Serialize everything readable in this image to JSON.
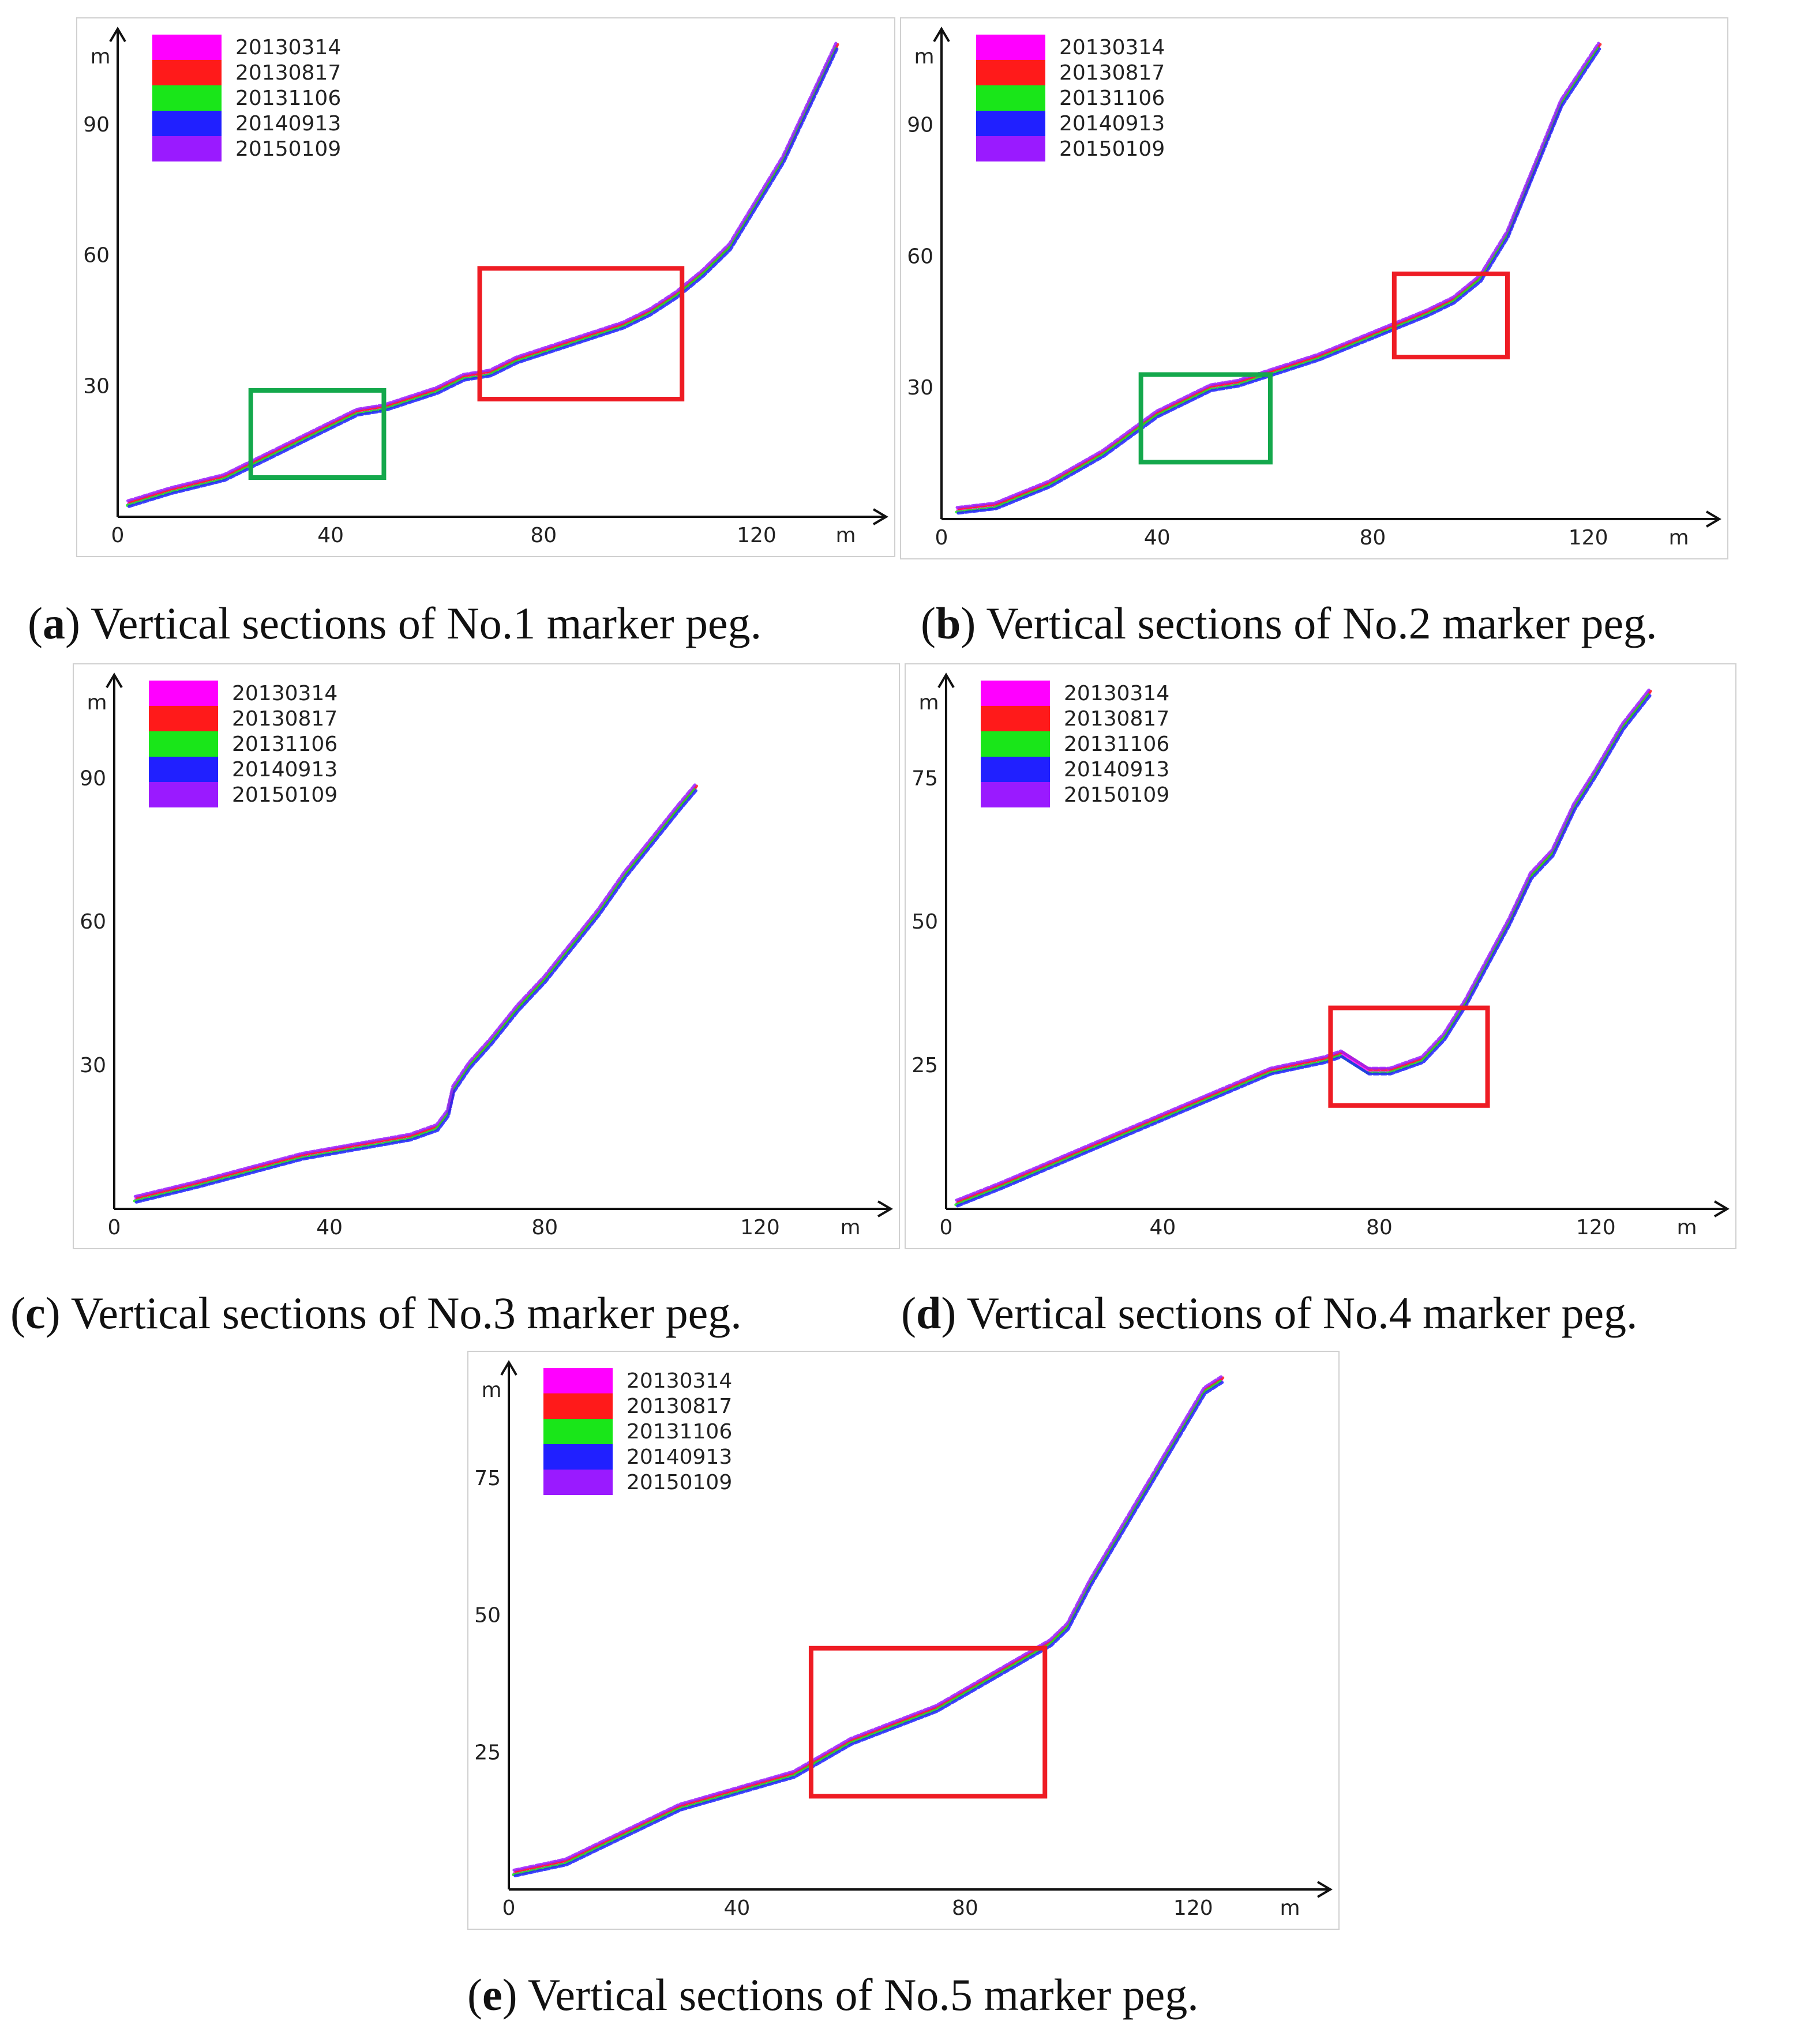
{
  "legend": {
    "items": [
      {
        "label": "20130314",
        "color": "#ff00ff"
      },
      {
        "label": "20130817",
        "color": "#ff1a1a"
      },
      {
        "label": "20131106",
        "color": "#19e619"
      },
      {
        "label": "20140913",
        "color": "#2020ff"
      },
      {
        "label": "20150109",
        "color": "#9a1aff"
      }
    ]
  },
  "box_colors": {
    "red": "#ee1c24",
    "green": "#14a84c"
  },
  "chart_data": [
    {
      "type": "line",
      "letter": "a",
      "caption": "Vertical sections of No.1 marker peg.",
      "xlabel": "m",
      "ylabel": "m",
      "xlim": [
        0,
        140
      ],
      "ylim": [
        0,
        108
      ],
      "xticks": [
        0,
        40,
        80,
        120
      ],
      "yticks": [
        30,
        60,
        90
      ],
      "profile": [
        [
          2,
          3
        ],
        [
          10,
          6
        ],
        [
          20,
          9
        ],
        [
          30,
          15
        ],
        [
          40,
          21
        ],
        [
          45,
          24
        ],
        [
          50,
          25
        ],
        [
          55,
          27
        ],
        [
          60,
          29
        ],
        [
          65,
          32
        ],
        [
          70,
          33
        ],
        [
          75,
          36
        ],
        [
          80,
          38
        ],
        [
          85,
          40
        ],
        [
          90,
          42
        ],
        [
          95,
          44
        ],
        [
          100,
          47
        ],
        [
          105,
          51
        ],
        [
          110,
          56
        ],
        [
          115,
          62
        ],
        [
          120,
          72
        ],
        [
          125,
          82
        ],
        [
          130,
          95
        ],
        [
          135,
          108
        ]
      ],
      "boxes": [
        {
          "color": "green",
          "x0": 25,
          "x1": 50,
          "y0": 9,
          "y1": 29
        },
        {
          "color": "red",
          "x0": 68,
          "x1": 106,
          "y0": 27,
          "y1": 57
        }
      ]
    },
    {
      "type": "line",
      "letter": "b",
      "caption": "Vertical sections of No.2 marker peg.",
      "xlabel": "m",
      "ylabel": "m",
      "xlim": [
        0,
        140
      ],
      "ylim": [
        0,
        108
      ],
      "xticks": [
        0,
        40,
        80,
        120
      ],
      "yticks": [
        30,
        60,
        90
      ],
      "profile": [
        [
          3,
          2
        ],
        [
          10,
          3
        ],
        [
          20,
          8
        ],
        [
          30,
          15
        ],
        [
          40,
          24
        ],
        [
          45,
          27
        ],
        [
          50,
          30
        ],
        [
          55,
          31
        ],
        [
          60,
          33
        ],
        [
          65,
          35
        ],
        [
          70,
          37
        ],
        [
          80,
          42
        ],
        [
          90,
          47
        ],
        [
          95,
          50
        ],
        [
          100,
          55
        ],
        [
          105,
          65
        ],
        [
          110,
          80
        ],
        [
          115,
          95
        ],
        [
          122,
          108
        ]
      ],
      "boxes": [
        {
          "color": "green",
          "x0": 37,
          "x1": 61,
          "y0": 13,
          "y1": 33
        },
        {
          "color": "red",
          "x0": 84,
          "x1": 105,
          "y0": 37,
          "y1": 56
        }
      ]
    },
    {
      "type": "line",
      "letter": "c",
      "caption": "Vertical sections of No.3 marker peg.",
      "xlabel": "m",
      "ylabel": "m",
      "xlim": [
        0,
        140
      ],
      "ylim": [
        0,
        108
      ],
      "xticks": [
        0,
        40,
        80,
        120
      ],
      "yticks": [
        30,
        60,
        90
      ],
      "profile": [
        [
          4,
          2
        ],
        [
          15,
          5
        ],
        [
          25,
          8
        ],
        [
          35,
          11
        ],
        [
          45,
          13
        ],
        [
          55,
          15
        ],
        [
          60,
          17
        ],
        [
          62,
          20
        ],
        [
          63,
          25
        ],
        [
          66,
          30
        ],
        [
          70,
          35
        ],
        [
          75,
          42
        ],
        [
          80,
          48
        ],
        [
          85,
          55
        ],
        [
          90,
          62
        ],
        [
          95,
          70
        ],
        [
          100,
          77
        ],
        [
          105,
          84
        ],
        [
          108,
          88
        ]
      ],
      "boxes": []
    },
    {
      "type": "line",
      "letter": "d",
      "caption": "Vertical sections of No.4 marker peg.",
      "xlabel": "m",
      "ylabel": "m",
      "xlim": [
        0,
        140
      ],
      "ylim": [
        0,
        90
      ],
      "xticks": [
        0,
        40,
        80,
        120
      ],
      "yticks": [
        25,
        50,
        75
      ],
      "profile": [
        [
          2,
          1
        ],
        [
          10,
          4
        ],
        [
          20,
          8
        ],
        [
          30,
          12
        ],
        [
          40,
          16
        ],
        [
          50,
          20
        ],
        [
          60,
          24
        ],
        [
          70,
          26
        ],
        [
          73,
          27
        ],
        [
          78,
          24
        ],
        [
          82,
          24
        ],
        [
          88,
          26
        ],
        [
          92,
          30
        ],
        [
          96,
          36
        ],
        [
          100,
          43
        ],
        [
          104,
          50
        ],
        [
          108,
          58
        ],
        [
          112,
          62
        ],
        [
          116,
          70
        ],
        [
          120,
          76
        ],
        [
          125,
          84
        ],
        [
          130,
          90
        ]
      ],
      "boxes": [
        {
          "color": "red",
          "x0": 71,
          "x1": 100,
          "y0": 18,
          "y1": 35
        }
      ]
    },
    {
      "type": "line",
      "letter": "e",
      "caption": "Vertical sections of No.5 marker peg.",
      "xlabel": "m",
      "ylabel": "m",
      "xlim": [
        0,
        140
      ],
      "ylim": [
        0,
        93
      ],
      "xticks": [
        0,
        40,
        80,
        120
      ],
      "yticks": [
        25,
        50,
        75
      ],
      "profile": [
        [
          1,
          3
        ],
        [
          10,
          5
        ],
        [
          20,
          10
        ],
        [
          30,
          15
        ],
        [
          40,
          18
        ],
        [
          50,
          21
        ],
        [
          55,
          24
        ],
        [
          60,
          27
        ],
        [
          65,
          29
        ],
        [
          70,
          31
        ],
        [
          75,
          33
        ],
        [
          80,
          36
        ],
        [
          85,
          39
        ],
        [
          90,
          42
        ],
        [
          95,
          45
        ],
        [
          98,
          48
        ],
        [
          102,
          56
        ],
        [
          106,
          63
        ],
        [
          110,
          70
        ],
        [
          114,
          77
        ],
        [
          118,
          84
        ],
        [
          122,
          91
        ],
        [
          125,
          93
        ]
      ],
      "boxes": [
        {
          "color": "red",
          "x0": 53,
          "x1": 94,
          "y0": 17,
          "y1": 44
        }
      ]
    }
  ]
}
